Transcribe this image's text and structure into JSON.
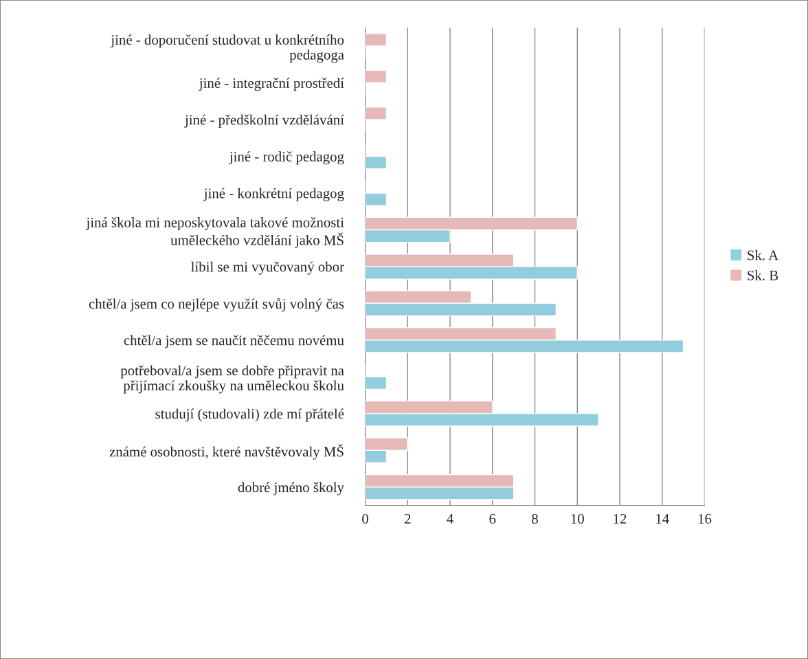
{
  "chart_data": {
    "type": "bar",
    "orientation": "horizontal",
    "categories": [
      "jiné - doporučení studovat u konkrétního\npedagoga",
      "jiné - integrační prostředí",
      "jiné - předškolní vzdělávání",
      "jiné - rodič pedagog",
      "jiné - konkrétní pedagog",
      "jiná škola mi neposkytovala takové možnosti\numěleckého vzdělání jako MŠ",
      "líbil se mi vyučovaný obor",
      "chtěl/a jsem co nejlépe využít svůj volný čas",
      "chtěl/a jsem se naučit něčemu novému",
      "potřeboval/a jsem se dobře připravit na\npřijímací zkoušky na uměleckou školu",
      "studují (studovali) zde mí přátelé",
      "známé osobnosti, které navštěvovaly MŠ",
      "dobré jméno školy"
    ],
    "series": [
      {
        "name": "Sk. B",
        "color": "#e6b9b8",
        "values": [
          1,
          1,
          1,
          null,
          null,
          10,
          7,
          5,
          9,
          null,
          6,
          2,
          7
        ]
      },
      {
        "name": "Sk. A",
        "color": "#93cddd",
        "values": [
          null,
          null,
          null,
          1,
          1,
          4,
          10,
          9,
          15,
          1,
          11,
          1,
          7
        ]
      }
    ],
    "xlim": [
      0,
      16
    ],
    "xticks": [
      0,
      2,
      4,
      6,
      8,
      10,
      12,
      14,
      16
    ],
    "grid": "x",
    "legend": "right"
  }
}
